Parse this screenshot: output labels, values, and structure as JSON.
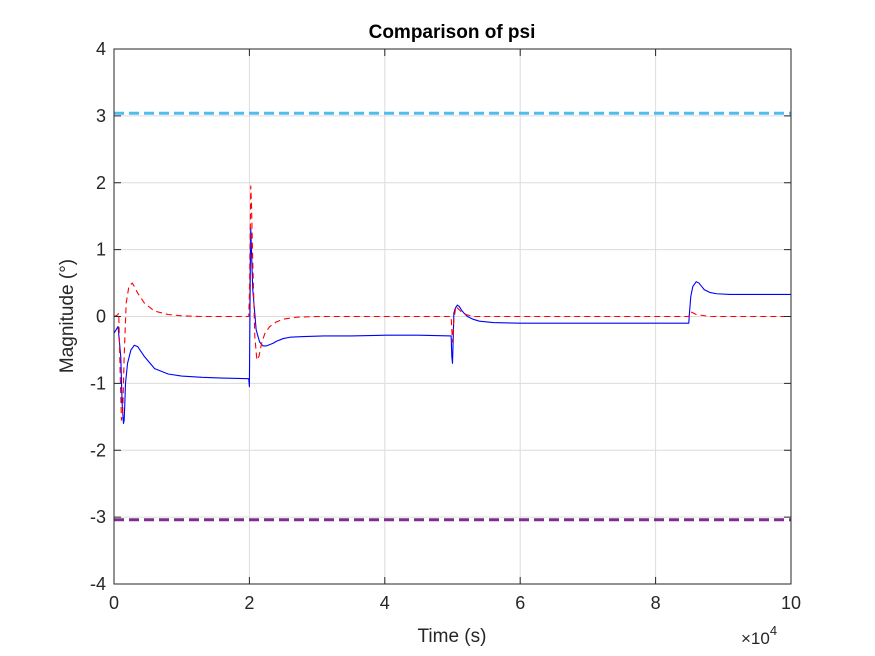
{
  "chart_data": {
    "type": "line",
    "title": "Comparison of psi",
    "xlabel": "Time (s)",
    "ylabel": "Magnitude (°)",
    "xlim": [
      0,
      100000
    ],
    "ylim": [
      -4,
      4
    ],
    "x_exponent_label": {
      "base": "×10",
      "power": "4"
    },
    "x_ticks": [
      0,
      20000,
      40000,
      60000,
      80000,
      100000
    ],
    "x_tick_labels": [
      "0",
      "2",
      "4",
      "6",
      "8",
      "10"
    ],
    "y_ticks": [
      -4,
      -3,
      -2,
      -1,
      0,
      1,
      2,
      3,
      4
    ],
    "y_tick_labels": [
      "-4",
      "-3",
      "-2",
      "-1",
      "0",
      "1",
      "2",
      "3",
      "4"
    ],
    "grid": true,
    "series": [
      {
        "style": "solid",
        "color": "#0000ff",
        "x": [
          0,
          300,
          600,
          1000,
          1200,
          1400,
          1500,
          1600,
          1700,
          2000,
          2500,
          3000,
          3500,
          4500,
          6000,
          8000,
          10000,
          13000,
          16000,
          19900,
          20000,
          20100,
          20200,
          20300,
          20500,
          21000,
          21500,
          22000,
          22500,
          23000,
          23500,
          24000,
          25000,
          26000,
          28000,
          31000,
          35000,
          40000,
          45000,
          49800,
          49900,
          50000,
          50100,
          50200,
          50400,
          50700,
          51000,
          51300,
          51700,
          52200,
          53000,
          54000,
          56000,
          60000,
          65000,
          70000,
          75000,
          80000,
          84900,
          85000,
          85200,
          85500,
          86000,
          86400,
          86800,
          87200,
          88000,
          89000,
          91000,
          94000,
          97000,
          100000
        ],
        "values": [
          -0.25,
          -0.2,
          -0.15,
          -0.6,
          -1.3,
          -1.6,
          -1.55,
          -1.3,
          -1.0,
          -0.7,
          -0.5,
          -0.43,
          -0.45,
          -0.6,
          -0.78,
          -0.86,
          -0.89,
          -0.91,
          -0.92,
          -0.93,
          -1.05,
          0.3,
          1.32,
          1.0,
          0.4,
          -0.2,
          -0.38,
          -0.44,
          -0.44,
          -0.42,
          -0.4,
          -0.37,
          -0.33,
          -0.31,
          -0.3,
          -0.29,
          -0.29,
          -0.28,
          -0.28,
          -0.29,
          -0.6,
          -0.7,
          -0.35,
          0.05,
          0.12,
          0.17,
          0.15,
          0.1,
          0.05,
          0.0,
          -0.04,
          -0.07,
          -0.09,
          -0.1,
          -0.1,
          -0.1,
          -0.1,
          -0.1,
          -0.1,
          0.05,
          0.3,
          0.45,
          0.52,
          0.5,
          0.45,
          0.4,
          0.36,
          0.34,
          0.33,
          0.33,
          0.33,
          0.33
        ]
      },
      {
        "style": "dashed",
        "color": "#ff0000",
        "x": [
          0,
          500,
          700,
          900,
          1100,
          1300,
          1500,
          1800,
          2200,
          2700,
          3000,
          3500,
          4500,
          6000,
          8000,
          10000,
          13000,
          16000,
          19900,
          20000,
          20100,
          20200,
          20300,
          20500,
          20800,
          21100,
          21400,
          21800,
          22300,
          23000,
          24000,
          25000,
          27000,
          30000,
          35000,
          40000,
          49800,
          49900,
          50000,
          50200,
          50500,
          50800,
          51200,
          52000,
          53000,
          55000,
          60000,
          70000,
          84900,
          85000,
          85200,
          85600,
          86000,
          88000,
          100000
        ],
        "values": [
          0.0,
          0.02,
          0.05,
          -0.8,
          -1.55,
          -1.4,
          -0.6,
          0.2,
          0.45,
          0.5,
          0.45,
          0.35,
          0.2,
          0.08,
          0.03,
          0.01,
          0.0,
          0.0,
          0.0,
          0.3,
          1.0,
          1.95,
          1.7,
          0.8,
          -0.3,
          -0.65,
          -0.6,
          -0.4,
          -0.25,
          -0.15,
          -0.08,
          -0.04,
          -0.01,
          0.0,
          0.0,
          0.0,
          0.0,
          -0.2,
          -0.38,
          -0.05,
          0.15,
          0.12,
          0.08,
          0.03,
          0.0,
          0.0,
          0.0,
          0.0,
          0.0,
          0.04,
          0.07,
          0.05,
          0.03,
          0.0,
          0.0
        ]
      },
      {
        "style": "bold-dashed",
        "color": "#4dbeee",
        "x": [
          0,
          100000
        ],
        "values": [
          3.04,
          3.04
        ]
      },
      {
        "style": "bold-dashed",
        "color": "#7e2f8e",
        "x": [
          0,
          100000
        ],
        "values": [
          -3.04,
          -3.04
        ]
      }
    ],
    "colors": {
      "axis": "#262626",
      "grid": "#dcdcdc",
      "background": "#ffffff"
    }
  }
}
